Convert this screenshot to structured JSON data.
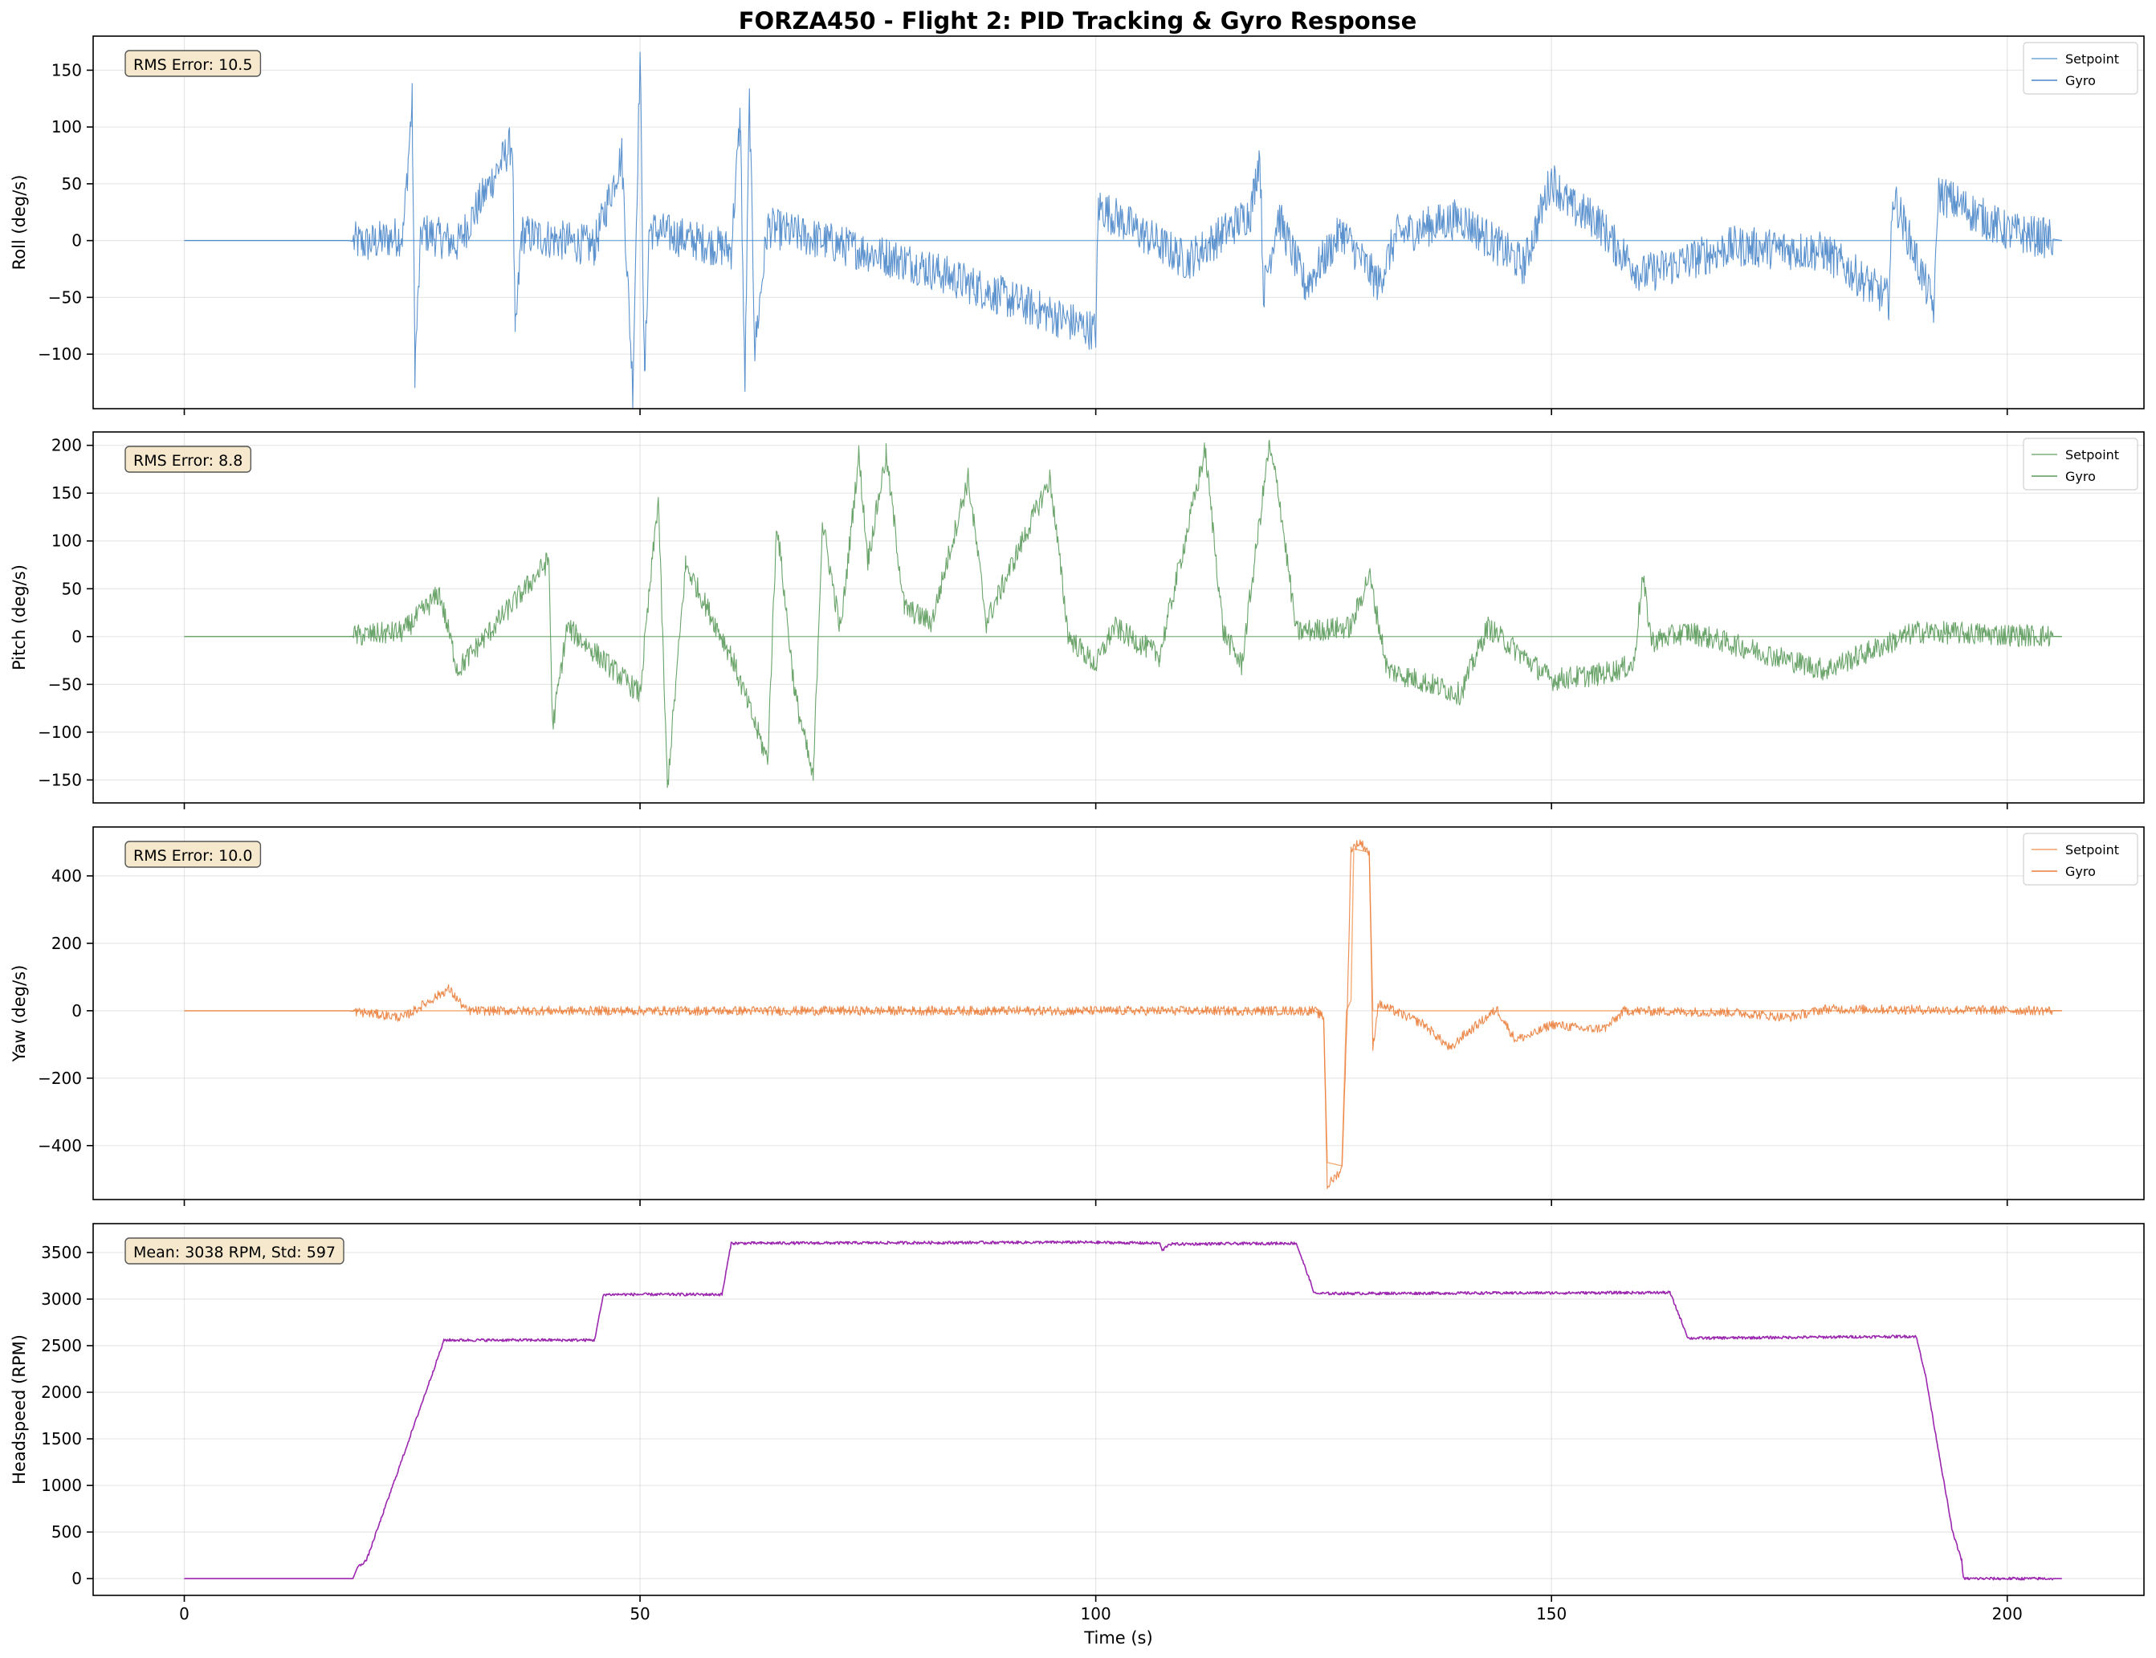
{
  "figure": {
    "title": "FORZA450 - Flight 2: PID Tracking & Gyro Response"
  },
  "chart_data": [
    {
      "type": "line",
      "ylabel": "Roll (deg/s)",
      "xlabel": "",
      "xlim": [
        -10,
        215
      ],
      "ylim": [
        -148,
        180
      ],
      "xticks": [
        0,
        50,
        100,
        150,
        200
      ],
      "yticks": [
        -100,
        -50,
        0,
        50,
        100,
        150
      ],
      "grid": true,
      "legend_position": "top-right",
      "annotation": "RMS Error: 10.5",
      "colors": {
        "setpoint": "#6fa8dc",
        "gyro": "#4a86c8"
      },
      "series": [
        {
          "name": "Setpoint",
          "profile": [
            [
              0,
              0
            ],
            [
              18,
              0
            ],
            [
              206,
              0
            ]
          ]
        },
        {
          "name": "Gyro",
          "profile": [
            [
              0,
              0
            ],
            [
              18,
              0
            ],
            [
              20,
              -3
            ],
            [
              24,
              5
            ],
            [
              25,
              122
            ],
            [
              25.3,
              -112
            ],
            [
              26,
              8
            ],
            [
              30,
              -3
            ],
            [
              36,
              87
            ],
            [
              36.3,
              -88
            ],
            [
              37,
              6
            ],
            [
              45,
              -5
            ],
            [
              48,
              75
            ],
            [
              49.2,
              -130
            ],
            [
              50,
              165
            ],
            [
              50.5,
              -125
            ],
            [
              51,
              10
            ],
            [
              60,
              -8
            ],
            [
              61,
              110
            ],
            [
              61.5,
              -133
            ],
            [
              62,
              125
            ],
            [
              62.6,
              -95
            ],
            [
              64,
              12
            ],
            [
              80,
              -20
            ],
            [
              100,
              -80
            ],
            [
              100.3,
              30
            ],
            [
              110,
              -18
            ],
            [
              117,
              25
            ],
            [
              118,
              78
            ],
            [
              118.4,
              -45
            ],
            [
              120,
              22
            ],
            [
              123,
              -40
            ],
            [
              127,
              8
            ],
            [
              131,
              -38
            ],
            [
              133,
              5
            ],
            [
              140,
              20
            ],
            [
              147,
              -22
            ],
            [
              150,
              55
            ],
            [
              152,
              30
            ],
            [
              155,
              18
            ],
            [
              157,
              -5
            ],
            [
              160,
              -30
            ],
            [
              170,
              -5
            ],
            [
              180,
              -10
            ],
            [
              187,
              -52
            ],
            [
              187.5,
              40
            ],
            [
              192,
              -60
            ],
            [
              192.4,
              42
            ],
            [
              200,
              8
            ],
            [
              206,
              0
            ]
          ],
          "noise_amplitude": 18
        }
      ]
    },
    {
      "type": "line",
      "ylabel": "Pitch (deg/s)",
      "xlabel": "",
      "xlim": [
        -10,
        215
      ],
      "ylim": [
        -174,
        214
      ],
      "xticks": [
        0,
        50,
        100,
        150,
        200
      ],
      "yticks": [
        -150,
        -100,
        -50,
        0,
        50,
        100,
        150,
        200
      ],
      "grid": true,
      "legend_position": "top-right",
      "annotation": "RMS Error: 8.8",
      "colors": {
        "setpoint": "#7fb17f",
        "gyro": "#5a9a5a"
      },
      "series": [
        {
          "name": "Setpoint",
          "profile": [
            [
              0,
              0
            ],
            [
              18,
              0
            ],
            [
              206,
              0
            ]
          ]
        },
        {
          "name": "Gyro",
          "profile": [
            [
              0,
              0
            ],
            [
              18,
              0
            ],
            [
              24,
              5
            ],
            [
              28,
              45
            ],
            [
              30,
              -35
            ],
            [
              40,
              80
            ],
            [
              40.4,
              -95
            ],
            [
              42,
              10
            ],
            [
              50,
              -60
            ],
            [
              52,
              145
            ],
            [
              53,
              -158
            ],
            [
              55,
              75
            ],
            [
              60,
              -20
            ],
            [
              64,
              -130
            ],
            [
              65,
              120
            ],
            [
              67,
              -60
            ],
            [
              69,
              -150
            ],
            [
              70,
              120
            ],
            [
              72,
              5
            ],
            [
              74,
              190
            ],
            [
              75,
              80
            ],
            [
              77,
              190
            ],
            [
              79,
              30
            ],
            [
              82,
              15
            ],
            [
              86,
              165
            ],
            [
              88,
              15
            ],
            [
              95,
              165
            ],
            [
              97,
              0
            ],
            [
              100,
              -30
            ],
            [
              102,
              10
            ],
            [
              107,
              -20
            ],
            [
              112,
              195
            ],
            [
              114,
              5
            ],
            [
              116,
              -30
            ],
            [
              119,
              198
            ],
            [
              120,
              155
            ],
            [
              122,
              5
            ],
            [
              128,
              10
            ],
            [
              130,
              65
            ],
            [
              132,
              -35
            ],
            [
              140,
              -60
            ],
            [
              143,
              10
            ],
            [
              150,
              -45
            ],
            [
              155,
              -40
            ],
            [
              159,
              -30
            ],
            [
              160,
              62
            ],
            [
              161,
              -5
            ],
            [
              165,
              5
            ],
            [
              180,
              -35
            ],
            [
              190,
              5
            ],
            [
              206,
              0
            ]
          ],
          "noise_amplitude": 12
        }
      ]
    },
    {
      "type": "line",
      "ylabel": "Yaw (deg/s)",
      "xlabel": "",
      "xlim": [
        -10,
        215
      ],
      "ylim": [
        -560,
        545
      ],
      "xticks": [
        0,
        50,
        100,
        150,
        200
      ],
      "yticks": [
        -400,
        -200,
        0,
        200,
        400
      ],
      "grid": true,
      "legend_position": "top-right",
      "annotation": "RMS Error: 10.0",
      "colors": {
        "setpoint": "#f4a46a",
        "gyro": "#ea7d3a"
      },
      "series": [
        {
          "name": "Setpoint",
          "profile": [
            [
              0,
              0
            ],
            [
              18,
              0
            ],
            [
              124,
              0
            ],
            [
              125,
              -20
            ],
            [
              125.4,
              -450
            ],
            [
              127,
              -460
            ],
            [
              127.5,
              0
            ],
            [
              128,
              30
            ],
            [
              128.3,
              480
            ],
            [
              130,
              470
            ],
            [
              130.4,
              0
            ],
            [
              206,
              0
            ]
          ]
        },
        {
          "name": "Gyro",
          "profile": [
            [
              0,
              0
            ],
            [
              18,
              0
            ],
            [
              24,
              -20
            ],
            [
              29,
              65
            ],
            [
              31,
              0
            ],
            [
              60,
              0
            ],
            [
              124,
              0
            ],
            [
              125,
              -20
            ],
            [
              125.4,
              -520
            ],
            [
              127,
              -470
            ],
            [
              127.6,
              0
            ],
            [
              128,
              480
            ],
            [
              129,
              500
            ],
            [
              130,
              470
            ],
            [
              130.4,
              -110
            ],
            [
              131,
              20
            ],
            [
              136,
              -40
            ],
            [
              139,
              -115
            ],
            [
              140,
              -80
            ],
            [
              141,
              -60
            ],
            [
              144,
              5
            ],
            [
              146,
              -85
            ],
            [
              148,
              -70
            ],
            [
              150,
              -40
            ],
            [
              154,
              -55
            ],
            [
              156,
              -50
            ],
            [
              158,
              0
            ],
            [
              170,
              -5
            ],
            [
              176,
              -20
            ],
            [
              180,
              5
            ],
            [
              206,
              0
            ]
          ],
          "noise_amplitude": 14
        }
      ]
    },
    {
      "type": "line",
      "ylabel": "Headspeed (RPM)",
      "xlabel": "Time (s)",
      "xlim": [
        -10,
        215
      ],
      "ylim": [
        -180,
        3810
      ],
      "xticks": [
        0,
        50,
        100,
        150,
        200
      ],
      "xtick_labels": [
        "0",
        "50",
        "100",
        "150",
        "200"
      ],
      "yticks": [
        0,
        500,
        1000,
        1500,
        2000,
        2500,
        3000,
        3500
      ],
      "grid": true,
      "annotation": "Mean: 3038 RPM, Std: 597",
      "colors": {
        "line": "#9b27af"
      },
      "series": [
        {
          "name": "",
          "profile": [
            [
              0,
              0
            ],
            [
              18.5,
              0
            ],
            [
              19,
              120
            ],
            [
              20,
              200
            ],
            [
              28.5,
              2560
            ],
            [
              45,
              2560
            ],
            [
              46,
              3050
            ],
            [
              59,
              3050
            ],
            [
              60,
              3600
            ],
            [
              62,
              3600
            ],
            [
              98,
              3610
            ],
            [
              107,
              3600
            ],
            [
              107.3,
              3520
            ],
            [
              108,
              3590
            ],
            [
              122,
              3600
            ],
            [
              124,
              3060
            ],
            [
              163,
              3070
            ],
            [
              165,
              2580
            ],
            [
              190,
              2600
            ],
            [
              191,
              2200
            ],
            [
              194,
              500
            ],
            [
              195,
              200
            ],
            [
              195.2,
              0
            ],
            [
              206,
              0
            ]
          ],
          "noise_amplitude": 15
        }
      ]
    }
  ]
}
